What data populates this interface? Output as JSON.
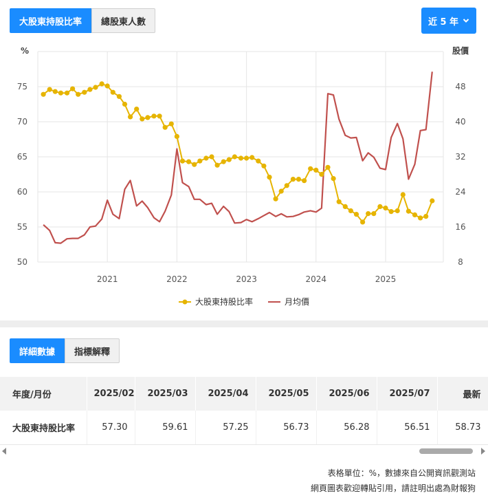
{
  "tabs": [
    {
      "label": "大股東持股比率",
      "active": true
    },
    {
      "label": "總股東人數",
      "active": false
    }
  ],
  "period_button": {
    "label": "近 5 年",
    "icon": "chevron-down-icon"
  },
  "detail_tabs": [
    {
      "label": "詳細數據",
      "active": true
    },
    {
      "label": "指標解釋",
      "active": false
    }
  ],
  "colors": {
    "accent": "#1a8cff",
    "ratio_series": "#e6b400",
    "price_series": "#c0504d"
  },
  "chart_data": {
    "type": "line",
    "left_axis_unit": "%",
    "right_axis_unit": "股價",
    "y_left_range": [
      50,
      80
    ],
    "y_left_ticks": [
      "50",
      "55",
      "60",
      "65",
      "70",
      "75"
    ],
    "y_right_range": [
      8,
      56
    ],
    "y_right_ticks": [
      "8",
      "16",
      "24",
      "32",
      "40",
      "48"
    ],
    "x_ticks": [
      "2021",
      "2022",
      "2023",
      "2024",
      "2025"
    ],
    "x_range": [
      2020.0,
      2025.83
    ],
    "grid": true,
    "legend_position": "bottom",
    "series": [
      {
        "name": "大股東持股比率",
        "axis": "left",
        "marker": "circle",
        "points": [
          [
            2020.08,
            73.9
          ],
          [
            2020.17,
            74.6
          ],
          [
            2020.25,
            74.3
          ],
          [
            2020.33,
            74.1
          ],
          [
            2020.42,
            74.1
          ],
          [
            2020.5,
            74.7
          ],
          [
            2020.58,
            73.9
          ],
          [
            2020.67,
            74.2
          ],
          [
            2020.75,
            74.6
          ],
          [
            2020.83,
            74.9
          ],
          [
            2020.92,
            75.4
          ],
          [
            2021.0,
            75.1
          ],
          [
            2021.08,
            74.2
          ],
          [
            2021.17,
            73.6
          ],
          [
            2021.25,
            72.5
          ],
          [
            2021.33,
            70.7
          ],
          [
            2021.42,
            71.8
          ],
          [
            2021.5,
            70.4
          ],
          [
            2021.58,
            70.6
          ],
          [
            2021.67,
            70.8
          ],
          [
            2021.75,
            70.8
          ],
          [
            2021.83,
            69.2
          ],
          [
            2021.92,
            69.7
          ],
          [
            2022.0,
            67.9
          ],
          [
            2022.08,
            64.4
          ],
          [
            2022.17,
            64.3
          ],
          [
            2022.25,
            63.9
          ],
          [
            2022.33,
            64.4
          ],
          [
            2022.42,
            64.8
          ],
          [
            2022.5,
            65.0
          ],
          [
            2022.58,
            63.8
          ],
          [
            2022.67,
            64.3
          ],
          [
            2022.75,
            64.6
          ],
          [
            2022.83,
            65.0
          ],
          [
            2022.92,
            64.8
          ],
          [
            2023.0,
            64.8
          ],
          [
            2023.08,
            64.9
          ],
          [
            2023.17,
            64.4
          ],
          [
            2023.25,
            63.7
          ],
          [
            2023.33,
            62.1
          ],
          [
            2023.42,
            59.0
          ],
          [
            2023.5,
            60.1
          ],
          [
            2023.58,
            60.9
          ],
          [
            2023.67,
            61.8
          ],
          [
            2023.75,
            61.8
          ],
          [
            2023.83,
            61.6
          ],
          [
            2023.92,
            63.3
          ],
          [
            2024.0,
            63.1
          ],
          [
            2024.08,
            62.5
          ],
          [
            2024.17,
            63.5
          ],
          [
            2024.25,
            61.9
          ],
          [
            2024.33,
            58.6
          ],
          [
            2024.42,
            57.9
          ],
          [
            2024.5,
            57.3
          ],
          [
            2024.58,
            56.8
          ],
          [
            2024.67,
            55.7
          ],
          [
            2024.75,
            56.9
          ],
          [
            2024.83,
            56.9
          ],
          [
            2024.92,
            57.9
          ],
          [
            2025.0,
            57.7
          ],
          [
            2025.08,
            57.2
          ],
          [
            2025.17,
            57.3
          ],
          [
            2025.25,
            59.61
          ],
          [
            2025.33,
            57.25
          ],
          [
            2025.42,
            56.73
          ],
          [
            2025.5,
            56.28
          ],
          [
            2025.58,
            56.51
          ],
          [
            2025.67,
            58.73
          ]
        ]
      },
      {
        "name": "月均價",
        "axis": "right",
        "marker": "none",
        "points": [
          [
            2020.08,
            16.5
          ],
          [
            2020.17,
            15.2
          ],
          [
            2020.25,
            12.4
          ],
          [
            2020.33,
            12.3
          ],
          [
            2020.42,
            13.3
          ],
          [
            2020.5,
            13.4
          ],
          [
            2020.58,
            13.4
          ],
          [
            2020.67,
            14.2
          ],
          [
            2020.75,
            16.0
          ],
          [
            2020.83,
            16.2
          ],
          [
            2020.92,
            17.8
          ],
          [
            2021.0,
            22.1
          ],
          [
            2021.08,
            18.9
          ],
          [
            2021.17,
            17.9
          ],
          [
            2021.25,
            24.6
          ],
          [
            2021.33,
            26.6
          ],
          [
            2021.42,
            20.8
          ],
          [
            2021.5,
            21.9
          ],
          [
            2021.58,
            20.4
          ],
          [
            2021.67,
            18.1
          ],
          [
            2021.75,
            17.2
          ],
          [
            2021.83,
            19.6
          ],
          [
            2021.92,
            23.3
          ],
          [
            2022.0,
            33.8
          ],
          [
            2022.08,
            26.1
          ],
          [
            2022.17,
            25.2
          ],
          [
            2022.25,
            22.3
          ],
          [
            2022.33,
            22.3
          ],
          [
            2022.42,
            21.1
          ],
          [
            2022.5,
            21.4
          ],
          [
            2022.58,
            18.9
          ],
          [
            2022.67,
            20.7
          ],
          [
            2022.75,
            19.5
          ],
          [
            2022.83,
            16.9
          ],
          [
            2022.92,
            17.0
          ],
          [
            2023.0,
            17.7
          ],
          [
            2023.08,
            17.2
          ],
          [
            2023.17,
            17.9
          ],
          [
            2023.25,
            18.6
          ],
          [
            2023.33,
            19.3
          ],
          [
            2023.42,
            18.4
          ],
          [
            2023.5,
            19.0
          ],
          [
            2023.58,
            18.3
          ],
          [
            2023.67,
            18.4
          ],
          [
            2023.75,
            18.8
          ],
          [
            2023.83,
            19.4
          ],
          [
            2023.92,
            19.7
          ],
          [
            2024.0,
            19.4
          ],
          [
            2024.08,
            20.3
          ],
          [
            2024.17,
            46.4
          ],
          [
            2024.25,
            46.1
          ],
          [
            2024.33,
            40.6
          ],
          [
            2024.42,
            36.9
          ],
          [
            2024.5,
            36.3
          ],
          [
            2024.58,
            36.4
          ],
          [
            2024.67,
            31.1
          ],
          [
            2024.75,
            32.9
          ],
          [
            2024.83,
            31.9
          ],
          [
            2024.92,
            29.4
          ],
          [
            2025.0,
            29.1
          ],
          [
            2025.08,
            36.4
          ],
          [
            2025.17,
            39.6
          ],
          [
            2025.25,
            36.1
          ],
          [
            2025.33,
            26.9
          ],
          [
            2025.42,
            30.3
          ],
          [
            2025.5,
            38.0
          ],
          [
            2025.58,
            38.2
          ],
          [
            2025.67,
            51.4
          ]
        ]
      }
    ]
  },
  "table": {
    "row_header_label": "年度/月份",
    "columns": [
      "2025/02",
      "2025/03",
      "2025/04",
      "2025/05",
      "2025/06",
      "2025/07",
      "最新"
    ],
    "rows": [
      {
        "label": "大股東持股比率",
        "values": [
          "57.30",
          "59.61",
          "57.25",
          "56.73",
          "56.28",
          "56.51",
          "58.73"
        ]
      }
    ]
  },
  "footnotes": [
    "表格單位：%，數據來自公開資訊觀測站",
    "網頁圖表歡迎轉貼引用，請註明出處為財報狗"
  ]
}
